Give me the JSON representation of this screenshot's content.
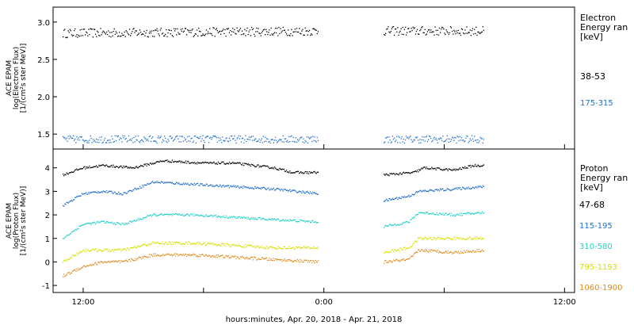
{
  "chart_data": [
    {
      "type": "scatter",
      "panel": "electron",
      "ylabel_lines": [
        "ACE EPAM",
        "log(Electron Flux)",
        "[1/(cm²s ster MeV)]"
      ],
      "ylim": [
        1.3,
        3.2
      ],
      "yticks": [
        1.5,
        2.0,
        2.5,
        3.0
      ],
      "ytick_labels": [
        "1.5",
        "2.0",
        "2.5",
        "3.0"
      ],
      "legend_title_lines": [
        "Electron",
        "Energy ran",
        "[keV]"
      ],
      "series": [
        {
          "name": "38-53",
          "color": "#000000",
          "base": [
            [
              10.0,
              2.85
            ],
            [
              35.5,
              2.88
            ]
          ],
          "gap_base": [
            [
              42.0,
              2.88
            ],
            [
              52.0,
              2.88
            ]
          ],
          "noise": 0.06
        },
        {
          "name": "175-315",
          "color": "#1f6fd0",
          "base": [
            [
              10.0,
              1.43
            ],
            [
              35.5,
              1.43
            ]
          ],
          "gap_base": [
            [
              42.0,
              1.43
            ],
            [
              52.0,
              1.43
            ]
          ],
          "noise": 0.05
        }
      ]
    },
    {
      "type": "scatter",
      "panel": "proton",
      "ylabel_lines": [
        "ACE EPAM",
        "log(Proton Flux)",
        "[1/(cm²s ster MeV)]"
      ],
      "ylim": [
        -1.3,
        4.8
      ],
      "yticks": [
        -1,
        0,
        1,
        2,
        3,
        4
      ],
      "ytick_labels": [
        "-1",
        "0",
        "1",
        "2",
        "3",
        "4"
      ],
      "legend_title_lines": [
        "Proton",
        "Energy ran",
        "[keV]"
      ],
      "series": [
        {
          "name": "47-68",
          "color": "#000000",
          "base": [
            [
              10.0,
              3.7
            ],
            [
              12.0,
              4.0
            ],
            [
              14.0,
              4.1
            ],
            [
              17.0,
              4.0
            ],
            [
              20.0,
              4.3
            ],
            [
              24.0,
              4.2
            ],
            [
              27.0,
              4.2
            ],
            [
              31.0,
              4.0
            ],
            [
              33.0,
              3.8
            ],
            [
              35.5,
              3.8
            ]
          ],
          "gap_base": [
            [
              42.0,
              3.7
            ],
            [
              45.0,
              3.8
            ],
            [
              46.0,
              4.0
            ],
            [
              49.0,
              3.9
            ],
            [
              51.0,
              4.1
            ],
            [
              52.0,
              4.1
            ]
          ],
          "noise": 0.05
        },
        {
          "name": "115-195",
          "color": "#1f6fd0",
          "base": [
            [
              10.0,
              2.4
            ],
            [
              12.0,
              2.9
            ],
            [
              14.0,
              3.0
            ],
            [
              16.0,
              2.9
            ],
            [
              19.0,
              3.4
            ],
            [
              23.0,
              3.3
            ],
            [
              27.0,
              3.2
            ],
            [
              31.0,
              3.1
            ],
            [
              35.5,
              2.9
            ]
          ],
          "gap_base": [
            [
              42.0,
              2.6
            ],
            [
              44.5,
              2.8
            ],
            [
              45.5,
              3.0
            ],
            [
              49.0,
              3.1
            ],
            [
              52.0,
              3.2
            ]
          ],
          "noise": 0.05
        },
        {
          "name": "310-580",
          "color": "#20d0c8",
          "base": [
            [
              10.0,
              1.0
            ],
            [
              12.0,
              1.6
            ],
            [
              14.0,
              1.7
            ],
            [
              16.0,
              1.6
            ],
            [
              19.0,
              2.0
            ],
            [
              23.0,
              2.0
            ],
            [
              27.0,
              1.9
            ],
            [
              31.0,
              1.8
            ],
            [
              35.5,
              1.7
            ]
          ],
          "gap_base": [
            [
              42.0,
              1.5
            ],
            [
              44.5,
              1.7
            ],
            [
              45.5,
              2.1
            ],
            [
              49.0,
              2.0
            ],
            [
              52.0,
              2.1
            ]
          ],
          "noise": 0.05
        },
        {
          "name": "795-1193",
          "color": "#d8e000",
          "base": [
            [
              10.0,
              0.0
            ],
            [
              12.0,
              0.5
            ],
            [
              14.0,
              0.5
            ],
            [
              16.0,
              0.5
            ],
            [
              19.0,
              0.8
            ],
            [
              23.0,
              0.8
            ],
            [
              27.0,
              0.7
            ],
            [
              31.0,
              0.6
            ],
            [
              35.5,
              0.6
            ]
          ],
          "gap_base": [
            [
              42.0,
              0.4
            ],
            [
              44.5,
              0.6
            ],
            [
              45.5,
              1.0
            ],
            [
              49.0,
              1.0
            ],
            [
              52.0,
              1.0
            ]
          ],
          "noise": 0.06
        },
        {
          "name": "1060-1900",
          "color": "#e08c1e",
          "base": [
            [
              10.0,
              -0.6
            ],
            [
              12.0,
              -0.2
            ],
            [
              14.0,
              0.0
            ],
            [
              16.0,
              0.0
            ],
            [
              19.0,
              0.3
            ],
            [
              23.0,
              0.3
            ],
            [
              27.0,
              0.2
            ],
            [
              31.0,
              0.1
            ],
            [
              35.5,
              0.0
            ]
          ],
          "gap_base": [
            [
              42.0,
              0.0
            ],
            [
              44.5,
              0.1
            ],
            [
              45.5,
              0.5
            ],
            [
              49.0,
              0.4
            ],
            [
              52.0,
              0.5
            ]
          ],
          "noise": 0.06
        }
      ]
    }
  ],
  "x_axis": {
    "xlim": [
      9.0,
      61.0
    ],
    "ticks": [
      12,
      24,
      36,
      48,
      60
    ],
    "labeled_ticks": [
      {
        "x": 12,
        "label": "12:00"
      },
      {
        "x": 36,
        "label": "0:00"
      },
      {
        "x": 60,
        "label": "12:00"
      }
    ],
    "xlabel": "hours:minutes, Apr. 20, 2018 - Apr. 21, 2018"
  }
}
